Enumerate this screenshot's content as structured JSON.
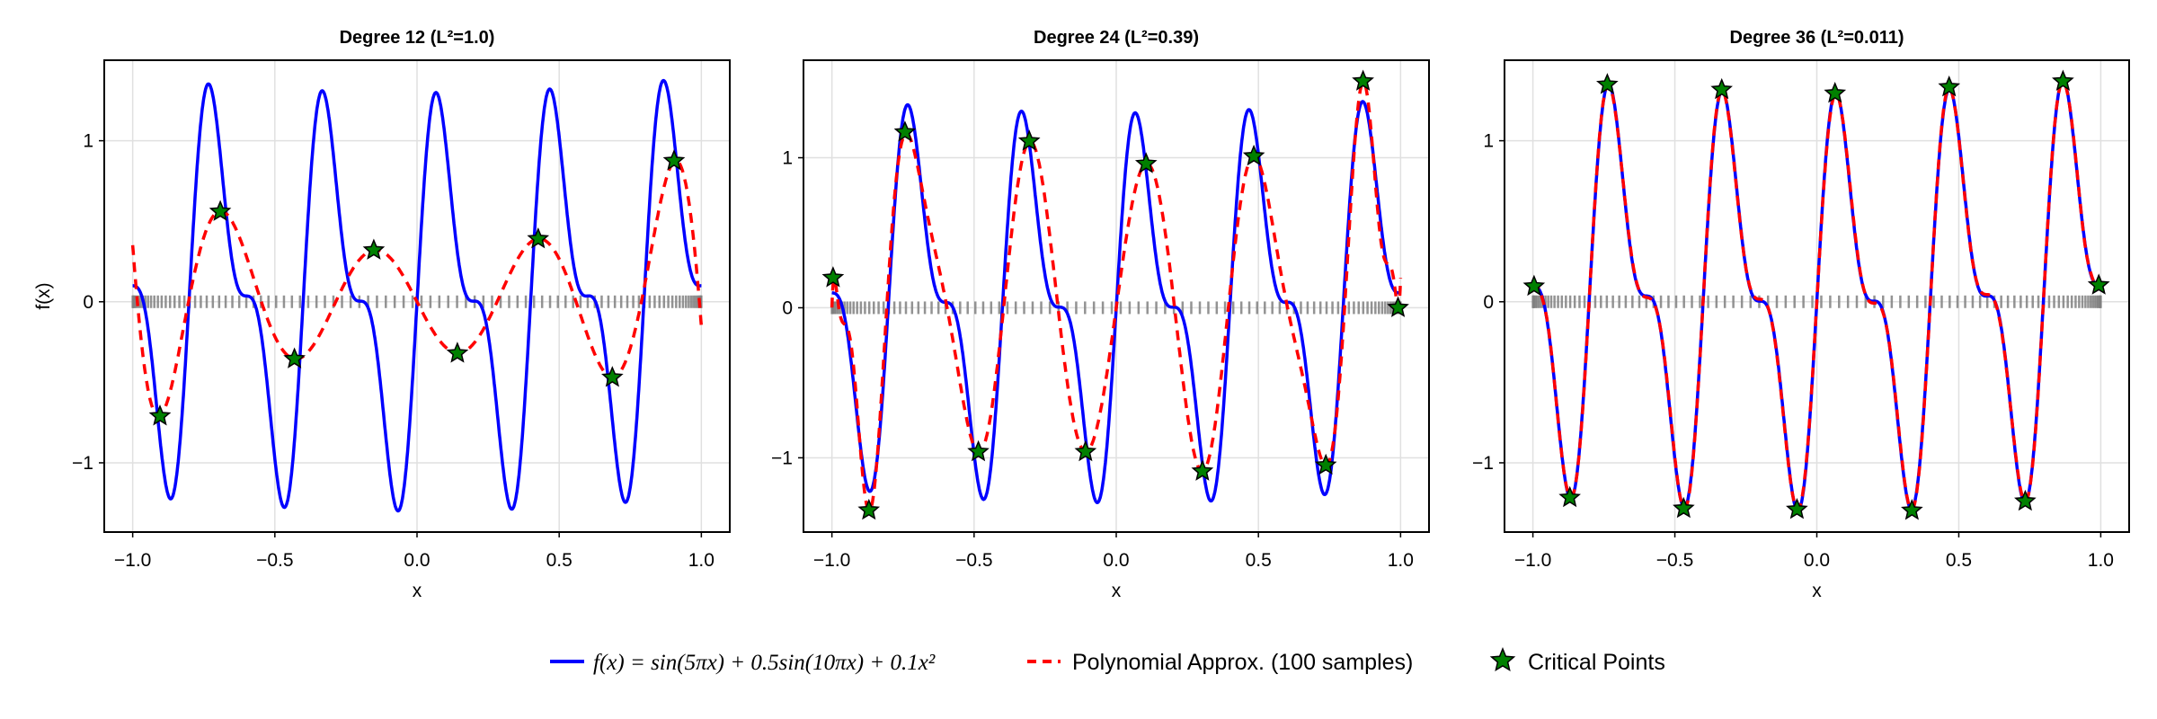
{
  "chart_data": [
    {
      "type": "line",
      "title": "Degree 12 (L²=1.0)",
      "degree": 12,
      "xlabel": "x",
      "ylabel": "f(x)",
      "xlim": [
        -1.1,
        1.1
      ],
      "ylim": [
        -1.43,
        1.5
      ],
      "xticks": [
        -1.0,
        -0.5,
        0.0,
        0.5,
        1.0
      ],
      "xtick_labels": [
        "−1.0",
        "−0.5",
        "0.0",
        "0.5",
        "1.0"
      ],
      "yticks": [
        -1,
        0,
        1
      ],
      "ytick_labels": [
        "−1",
        "0",
        "1"
      ],
      "grid": true,
      "critical_points": [
        [
          -0.904,
          -0.71
        ],
        [
          -0.692,
          0.56
        ],
        [
          -0.431,
          -0.355
        ],
        [
          -0.152,
          0.32
        ],
        [
          0.142,
          -0.32
        ],
        [
          0.426,
          0.39
        ],
        [
          0.687,
          -0.47
        ],
        [
          0.904,
          0.875
        ]
      ]
    },
    {
      "type": "line",
      "title": "Degree 24 (L²=0.39)",
      "degree": 24,
      "xlabel": "x",
      "ylabel": "",
      "xlim": [
        -1.1,
        1.1
      ],
      "ylim": [
        -1.495,
        1.65
      ],
      "xticks": [
        -1.0,
        -0.5,
        0.0,
        0.5,
        1.0
      ],
      "xtick_labels": [
        "−1.0",
        "−0.5",
        "0.0",
        "0.5",
        "1.0"
      ],
      "yticks": [
        -1,
        0,
        1
      ],
      "ytick_labels": [
        "−1",
        "0",
        "1"
      ],
      "grid": true,
      "critical_points": [
        [
          -0.996,
          0.2
        ],
        [
          -0.87,
          -1.35
        ],
        [
          -0.743,
          1.17
        ],
        [
          -0.485,
          -0.96
        ],
        [
          -0.306,
          1.11
        ],
        [
          -0.108,
          -0.96
        ],
        [
          0.105,
          0.96
        ],
        [
          0.303,
          -1.09
        ],
        [
          0.484,
          1.01
        ],
        [
          0.737,
          -1.05
        ],
        [
          0.868,
          1.51
        ],
        [
          0.991,
          0.0
        ]
      ]
    },
    {
      "type": "line",
      "title": "Degree 36 (L²=0.011)",
      "degree": 36,
      "xlabel": "x",
      "ylabel": "",
      "xlim": [
        -1.1,
        1.1
      ],
      "ylim": [
        -1.43,
        1.5
      ],
      "xticks": [
        -1.0,
        -0.5,
        0.0,
        0.5,
        1.0
      ],
      "xtick_labels": [
        "−1.0",
        "−0.5",
        "0.0",
        "0.5",
        "1.0"
      ],
      "yticks": [
        -1,
        0,
        1
      ],
      "ytick_labels": [
        "−1",
        "0",
        "1"
      ],
      "grid": true,
      "critical_points": [
        [
          -0.996,
          0.096
        ],
        [
          -0.87,
          -1.216
        ],
        [
          -0.738,
          1.349
        ],
        [
          -0.469,
          -1.284
        ],
        [
          -0.335,
          1.317
        ],
        [
          -0.07,
          -1.29
        ],
        [
          0.064,
          1.294
        ],
        [
          0.335,
          -1.296
        ],
        [
          0.466,
          1.333
        ],
        [
          0.734,
          -1.239
        ],
        [
          0.867,
          1.369
        ],
        [
          0.993,
          0.103
        ]
      ]
    }
  ],
  "function": {
    "sin_terms": [
      {
        "amp": 1,
        "freq": 5
      },
      {
        "amp": 0.5,
        "freq": 10
      }
    ],
    "quadratic": 0.1
  },
  "samples": 100,
  "legend": {
    "position": "bottom",
    "items": [
      {
        "label": "f(x) = sin(5πx) + 0.5sin(10πx) + 0.1x²",
        "color": "#0000ff",
        "style": "solid"
      },
      {
        "label": "Polynomial Approx. (100 samples)",
        "color": "#ff0000",
        "style": "dashed"
      },
      {
        "label": "Critical Points",
        "color": "#008000",
        "style": "star"
      }
    ]
  },
  "colors": {
    "function": "#0000ff",
    "approx": "#ff0000",
    "critical": "#008000",
    "samples": "#808080",
    "grid": "#e0e0e0"
  }
}
